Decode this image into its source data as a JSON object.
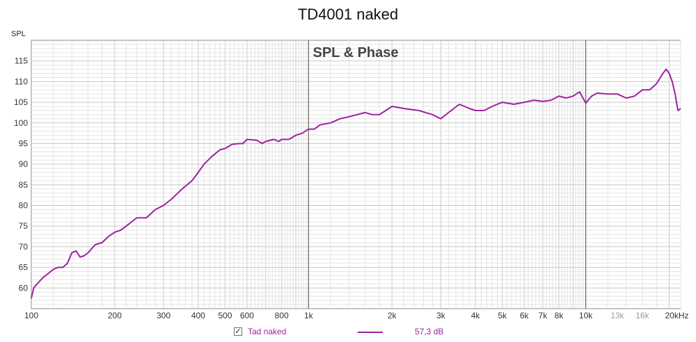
{
  "title": "TD4001 naked",
  "chart_data": {
    "type": "line",
    "title": "TD4001 naked",
    "subtitle": "SPL & Phase",
    "ylabel": "SPL",
    "xlabel": "",
    "x_scale": "log",
    "xlim": [
      100,
      22000
    ],
    "ylim": [
      55,
      120
    ],
    "grid": true,
    "y_ticks": [
      60,
      65,
      70,
      75,
      80,
      85,
      90,
      95,
      100,
      105,
      110,
      115
    ],
    "x_ticks": [
      {
        "value": 100,
        "label": "100"
      },
      {
        "value": 200,
        "label": "200"
      },
      {
        "value": 300,
        "label": "300"
      },
      {
        "value": 400,
        "label": "400"
      },
      {
        "value": 500,
        "label": "500"
      },
      {
        "value": 600,
        "label": "600"
      },
      {
        "value": 800,
        "label": "800"
      },
      {
        "value": 1000,
        "label": "1k"
      },
      {
        "value": 2000,
        "label": "2k"
      },
      {
        "value": 3000,
        "label": "3k"
      },
      {
        "value": 4000,
        "label": "4k"
      },
      {
        "value": 5000,
        "label": "5k"
      },
      {
        "value": 6000,
        "label": "6k"
      },
      {
        "value": 7000,
        "label": "7k"
      },
      {
        "value": 8000,
        "label": "8k"
      },
      {
        "value": 10000,
        "label": "10k"
      },
      {
        "value": 13000,
        "label": "13k"
      },
      {
        "value": 16000,
        "label": "16k"
      },
      {
        "value": 20000,
        "label": "20kHz"
      }
    ],
    "colors": {
      "series": "#a020a0",
      "minor_grid": "#e4e4e4",
      "major_grid": "#555555"
    },
    "series": [
      {
        "name": "Tad naked",
        "values": [
          [
            100,
            57.5
          ],
          [
            102,
            60
          ],
          [
            105,
            61
          ],
          [
            110,
            62.5
          ],
          [
            115,
            63.5
          ],
          [
            120,
            64.5
          ],
          [
            125,
            65
          ],
          [
            130,
            65
          ],
          [
            135,
            66
          ],
          [
            140,
            68.5
          ],
          [
            145,
            69
          ],
          [
            150,
            67.5
          ],
          [
            155,
            67.8
          ],
          [
            160,
            68.5
          ],
          [
            170,
            70.5
          ],
          [
            180,
            71
          ],
          [
            190,
            72.5
          ],
          [
            200,
            73.5
          ],
          [
            210,
            74
          ],
          [
            220,
            75
          ],
          [
            240,
            77
          ],
          [
            260,
            77
          ],
          [
            280,
            79
          ],
          [
            300,
            80
          ],
          [
            320,
            81.5
          ],
          [
            350,
            84
          ],
          [
            380,
            86
          ],
          [
            400,
            88
          ],
          [
            420,
            90
          ],
          [
            450,
            92
          ],
          [
            480,
            93.5
          ],
          [
            500,
            93.8
          ],
          [
            530,
            94.8
          ],
          [
            560,
            95
          ],
          [
            580,
            95
          ],
          [
            600,
            96
          ],
          [
            650,
            95.8
          ],
          [
            680,
            95
          ],
          [
            700,
            95.5
          ],
          [
            750,
            96
          ],
          [
            780,
            95.5
          ],
          [
            800,
            96
          ],
          [
            850,
            96
          ],
          [
            900,
            97
          ],
          [
            950,
            97.5
          ],
          [
            1000,
            98.5
          ],
          [
            1050,
            98.5
          ],
          [
            1100,
            99.5
          ],
          [
            1200,
            100
          ],
          [
            1300,
            101
          ],
          [
            1400,
            101.5
          ],
          [
            1500,
            102
          ],
          [
            1600,
            102.5
          ],
          [
            1700,
            102
          ],
          [
            1800,
            102
          ],
          [
            1900,
            103
          ],
          [
            2000,
            104
          ],
          [
            2200,
            103.5
          ],
          [
            2500,
            103
          ],
          [
            2800,
            102
          ],
          [
            3000,
            101
          ],
          [
            3200,
            102.5
          ],
          [
            3500,
            104.5
          ],
          [
            3800,
            103.5
          ],
          [
            4000,
            103
          ],
          [
            4300,
            103
          ],
          [
            4600,
            104
          ],
          [
            5000,
            105
          ],
          [
            5500,
            104.5
          ],
          [
            6000,
            105
          ],
          [
            6500,
            105.5
          ],
          [
            7000,
            105.2
          ],
          [
            7500,
            105.5
          ],
          [
            8000,
            106.5
          ],
          [
            8500,
            106
          ],
          [
            9000,
            106.5
          ],
          [
            9500,
            107.5
          ],
          [
            10000,
            104.8
          ],
          [
            10500,
            106.5
          ],
          [
            11000,
            107.2
          ],
          [
            12000,
            107
          ],
          [
            13000,
            107
          ],
          [
            14000,
            106
          ],
          [
            15000,
            106.5
          ],
          [
            16000,
            108
          ],
          [
            17000,
            108
          ],
          [
            18000,
            109.5
          ],
          [
            19000,
            112
          ],
          [
            19500,
            113
          ],
          [
            20000,
            112
          ],
          [
            20500,
            110
          ],
          [
            21000,
            107
          ],
          [
            21500,
            103
          ],
          [
            22000,
            103.5
          ]
        ]
      }
    ]
  },
  "legend": {
    "checkbox_label": "Tad naked",
    "checkbox_mark": "✓",
    "value_label": "57,3 dB"
  }
}
